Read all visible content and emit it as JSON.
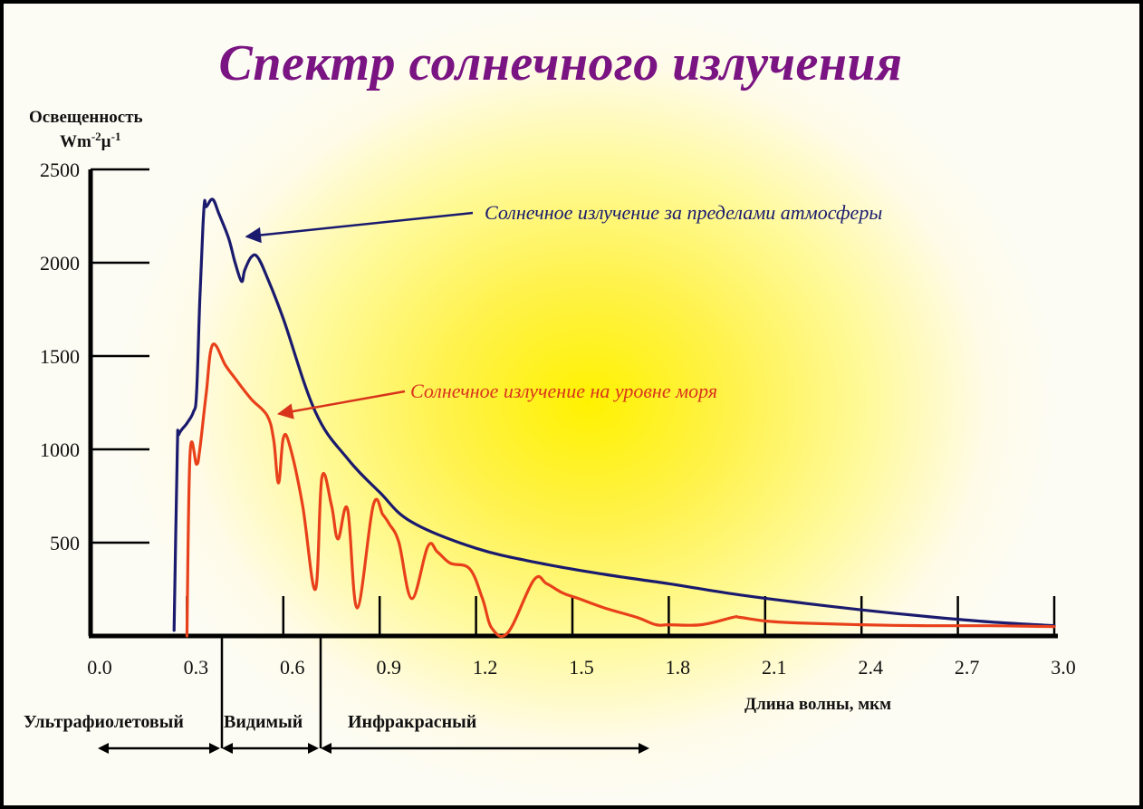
{
  "title": "Спектр солнечного излучения",
  "chart_data": {
    "type": "line",
    "ylabel_line1": "Освещенность",
    "ylabel_line2_base": "Wm",
    "ylabel_line2_sup1": "-2",
    "ylabel_line2_mid": "µ",
    "ylabel_line2_sup2": "-1",
    "xlabel": "Длина волны, мкм",
    "xlim": [
      0.0,
      3.0
    ],
    "ylim": [
      0,
      2500
    ],
    "x_ticks": [
      "0.0",
      "0.3",
      "0.6",
      "0.9",
      "1.2",
      "1.5",
      "1.8",
      "2.1",
      "2.4",
      "2.7",
      "3.0"
    ],
    "y_ticks": [
      "2500",
      "2000",
      "1500",
      "1000",
      "500"
    ],
    "y_tick_values": [
      2500,
      2000,
      1500,
      1000,
      500
    ],
    "series": [
      {
        "name": "Солнечное излучение за пределами атмосферы",
        "color": "#1a1a6e",
        "x": [
          0.26,
          0.27,
          0.275,
          0.3,
          0.32,
          0.33,
          0.34,
          0.35,
          0.355,
          0.36,
          0.38,
          0.4,
          0.43,
          0.45,
          0.47,
          0.48,
          0.5,
          0.52,
          0.55,
          0.6,
          0.7,
          0.8,
          0.9,
          1.0,
          1.2,
          1.4,
          1.6,
          1.8,
          2.0,
          2.2,
          2.4,
          2.6,
          2.8,
          3.0
        ],
        "y": [
          30,
          1000,
          1080,
          1140,
          1200,
          1300,
          1800,
          2200,
          2330,
          2300,
          2340,
          2260,
          2130,
          2000,
          1900,
          1960,
          2030,
          2030,
          1920,
          1700,
          1200,
          950,
          770,
          610,
          470,
          390,
          330,
          280,
          225,
          180,
          140,
          105,
          75,
          55
        ]
      },
      {
        "name": "Солнечное излучение на уровне моря",
        "color": "#e8401a",
        "x": [
          0.3,
          0.31,
          0.33,
          0.34,
          0.36,
          0.38,
          0.42,
          0.45,
          0.5,
          0.55,
          0.57,
          0.585,
          0.6,
          0.62,
          0.66,
          0.7,
          0.72,
          0.75,
          0.77,
          0.8,
          0.83,
          0.88,
          0.91,
          0.93,
          0.96,
          1.0,
          1.05,
          1.08,
          1.12,
          1.18,
          1.22,
          1.25,
          1.3,
          1.38,
          1.42,
          1.47,
          1.52,
          1.6,
          1.7,
          1.76,
          1.8,
          1.9,
          2.0,
          2.02,
          2.1,
          2.2,
          2.4,
          2.6,
          2.8,
          3.0
        ],
        "y": [
          0,
          980,
          920,
          1000,
          1300,
          1560,
          1450,
          1380,
          1270,
          1180,
          1050,
          820,
          1060,
          1020,
          700,
          250,
          850,
          700,
          520,
          680,
          150,
          700,
          650,
          600,
          500,
          200,
          480,
          450,
          390,
          360,
          200,
          40,
          20,
          300,
          280,
          230,
          200,
          150,
          100,
          60,
          60,
          60,
          100,
          100,
          80,
          70,
          60,
          55,
          55,
          50
        ]
      }
    ],
    "annotations": [
      {
        "text": "Солнечное излучение за пределами атмосферы",
        "color": "#1a1a6e",
        "x": 0.48,
        "y": 2140
      },
      {
        "text": "Солнечное излучение на уровне моря",
        "color": "#d8341c",
        "x": 0.58,
        "y": 1190
      }
    ],
    "regions": [
      {
        "label": "Ультрафиолетовый",
        "from": 0.0,
        "to": 0.39
      },
      {
        "label": "Видимый",
        "from": 0.39,
        "to": 0.72
      },
      {
        "label": "Инфракрасный",
        "from": 0.72,
        "to": 1.8
      }
    ]
  }
}
